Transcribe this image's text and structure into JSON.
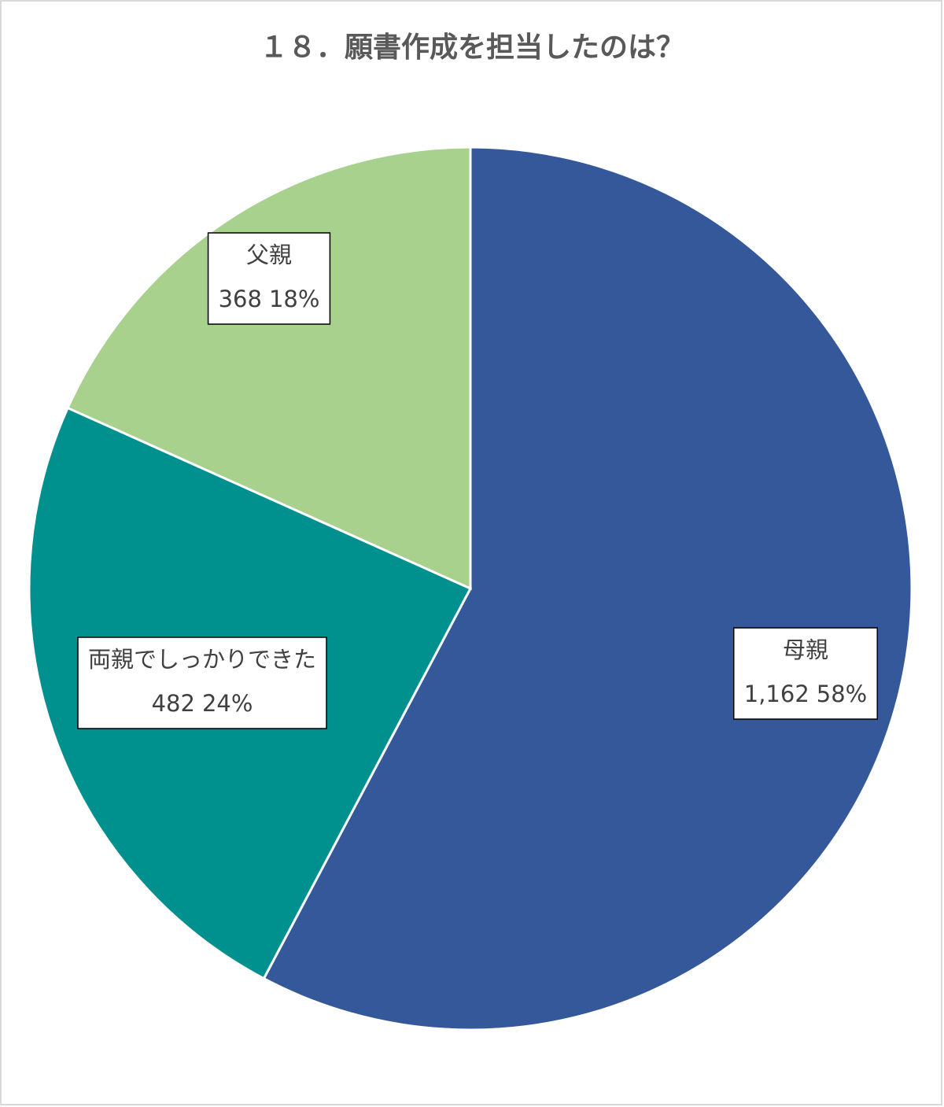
{
  "chart_data": {
    "type": "pie",
    "title": "１８．願書作成を担当したのは？",
    "categories": [
      "母親",
      "両親でしっかりできた",
      "父親"
    ],
    "values": [
      1162,
      482,
      368
    ],
    "value_labels": [
      "1,162",
      "482",
      "368"
    ],
    "percentages": [
      58,
      24,
      18
    ],
    "percentage_labels": [
      "58%",
      "24%",
      "18%"
    ],
    "colors": [
      "#34589a",
      "#00918f",
      "#a9d18e"
    ]
  }
}
